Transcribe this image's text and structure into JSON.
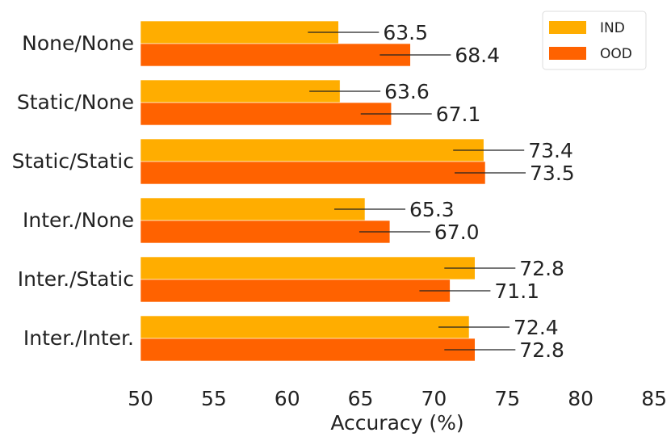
{
  "chart_data": {
    "type": "bar",
    "orientation": "horizontal",
    "categories": [
      "None/None",
      "Static/None",
      "Static/Static",
      "Inter./None",
      "Inter./Static",
      "Inter./Inter."
    ],
    "series": [
      {
        "name": "IND",
        "color": "#ffad00",
        "values": [
          63.5,
          63.6,
          73.4,
          65.3,
          72.8,
          72.4
        ]
      },
      {
        "name": "OOD",
        "color": "#ff6200",
        "values": [
          68.4,
          67.1,
          73.5,
          67.0,
          71.1,
          72.8
        ]
      }
    ],
    "value_labels": {
      "IND": [
        "63.5",
        "63.6",
        "73.4",
        "65.3",
        "72.8",
        "72.4"
      ],
      "OOD": [
        "68.4",
        "67.1",
        "73.5",
        "67.0",
        "71.1",
        "72.8"
      ]
    },
    "title": "",
    "xlabel": "Accuracy (%)",
    "ylabel": "",
    "xlim": [
      50,
      85
    ],
    "xticks": [
      "50",
      "55",
      "60",
      "65",
      "70",
      "75",
      "80",
      "85"
    ],
    "grid": false,
    "legend": "top-right"
  }
}
